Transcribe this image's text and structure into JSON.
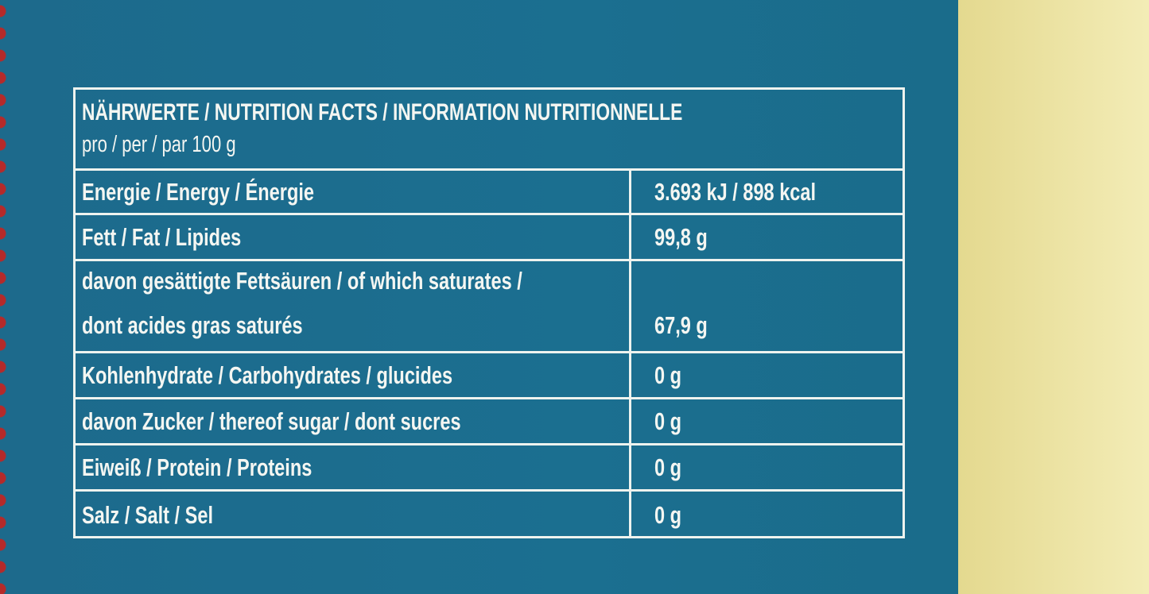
{
  "header": {
    "title": "NÄHRWERTE / NUTRITION FACTS / INFORMATION NUTRITIONNELLE",
    "subtitle": "pro / per / par 100 g"
  },
  "table": {
    "rows": [
      [
        "Energie / Energy / Énergie",
        "3.693 kJ / 898 kcal"
      ],
      [
        "Fett / Fat / Lipides",
        "99,8 g"
      ],
      [
        "davon gesättigte Fettsäuren / of which saturates /\ndont acides gras saturés",
        "67,9 g"
      ],
      [
        "Kohlenhydrate / Carbohydrates / glucides",
        "0 g"
      ],
      [
        "davon Zucker / thereof sugar / dont sucres",
        "0 g"
      ],
      [
        "Eiweiß / Protein / Proteins",
        "0 g"
      ],
      [
        "Salz / Salt / Sel",
        "0 g"
      ]
    ]
  }
}
